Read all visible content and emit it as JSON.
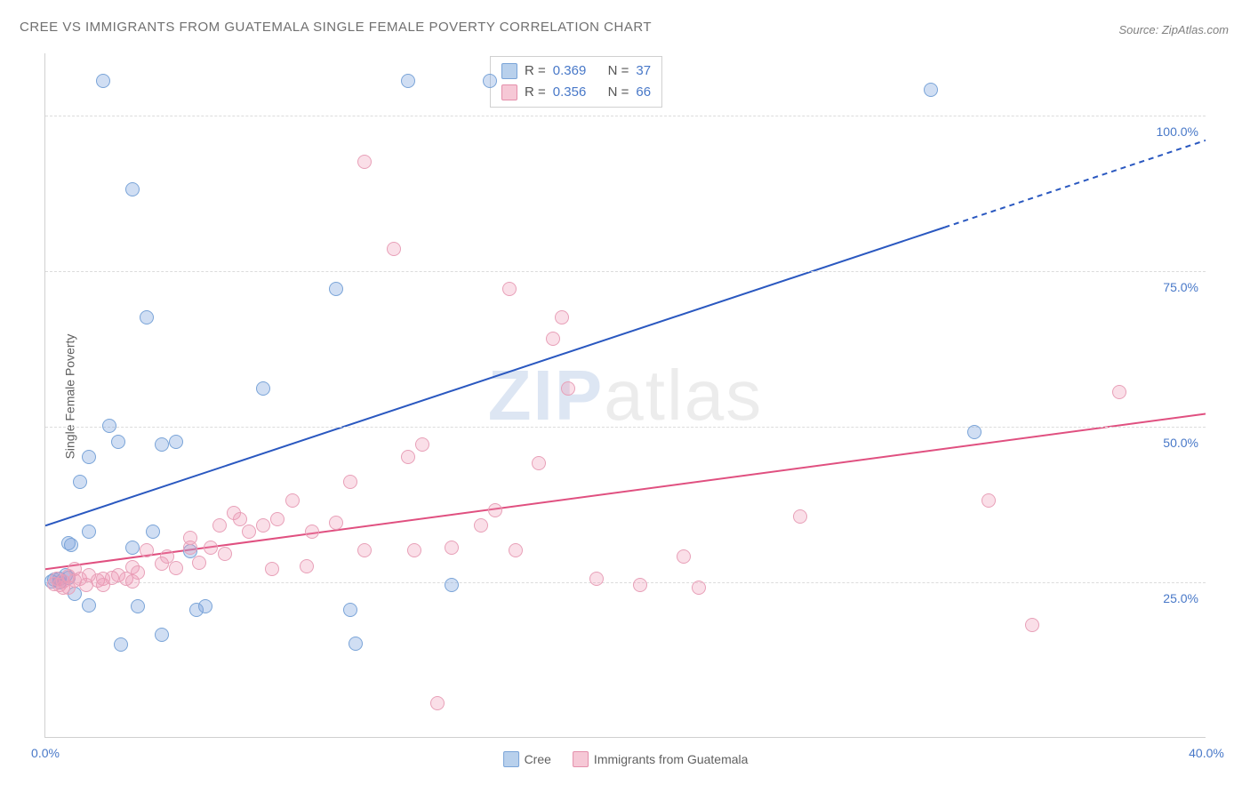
{
  "title": "CREE VS IMMIGRANTS FROM GUATEMALA SINGLE FEMALE POVERTY CORRELATION CHART",
  "source_label": "Source: ZipAtlas.com",
  "ylabel": "Single Female Poverty",
  "watermark_a": "ZIP",
  "watermark_b": "atlas",
  "chart": {
    "type": "scatter",
    "xlim": [
      0,
      40
    ],
    "ylim": [
      0,
      110
    ],
    "x_ticks": [
      {
        "v": 0,
        "label": "0.0%"
      },
      {
        "v": 40,
        "label": "40.0%"
      }
    ],
    "y_ticks": [
      {
        "v": 25,
        "label": "25.0%"
      },
      {
        "v": 50,
        "label": "50.0%"
      },
      {
        "v": 75,
        "label": "75.0%"
      },
      {
        "v": 100,
        "label": "100.0%"
      }
    ],
    "grid_color": "#dcdcdc",
    "background_color": "#ffffff",
    "marker_radius": 8,
    "series": [
      {
        "name": "Cree",
        "fill": "rgba(120,160,220,0.35)",
        "stroke": "#7aa4d8",
        "swatch_fill": "#b8d0ec",
        "swatch_stroke": "#7aa4d8",
        "r": "0.369",
        "n": "37",
        "trend": {
          "x1": 0,
          "y1": 34,
          "x2": 31,
          "y2": 82,
          "end_x": 40,
          "end_y": 96,
          "color": "#2a58c0",
          "width": 2
        },
        "points": [
          [
            0.2,
            25.0
          ],
          [
            0.3,
            25.3
          ],
          [
            0.5,
            25.5
          ],
          [
            0.5,
            24.8
          ],
          [
            0.7,
            26.0
          ],
          [
            0.8,
            25.6
          ],
          [
            0.8,
            31.2
          ],
          [
            0.9,
            30.8
          ],
          [
            1.0,
            23.0
          ],
          [
            1.2,
            41.0
          ],
          [
            1.5,
            45.0
          ],
          [
            1.5,
            33.0
          ],
          [
            1.5,
            21.1
          ],
          [
            2.0,
            105.5
          ],
          [
            2.2,
            50.0
          ],
          [
            2.5,
            47.5
          ],
          [
            2.6,
            14.8
          ],
          [
            3.0,
            88.0
          ],
          [
            3.0,
            30.5
          ],
          [
            3.2,
            21.0
          ],
          [
            3.5,
            67.5
          ],
          [
            3.7,
            33.0
          ],
          [
            4.0,
            47.0
          ],
          [
            4.0,
            16.5
          ],
          [
            4.5,
            47.5
          ],
          [
            5.0,
            29.8
          ],
          [
            5.2,
            20.5
          ],
          [
            5.5,
            21.0
          ],
          [
            7.5,
            56.0
          ],
          [
            10.0,
            72.0
          ],
          [
            10.5,
            20.5
          ],
          [
            10.7,
            15.0
          ],
          [
            12.5,
            105.5
          ],
          [
            14.0,
            24.5
          ],
          [
            15.3,
            105.5
          ],
          [
            30.5,
            104.0
          ],
          [
            32.0,
            49.0
          ]
        ]
      },
      {
        "name": "Immigrants from Guatemala",
        "fill": "rgba(240,150,180,0.30)",
        "stroke": "#e8a0b8",
        "swatch_fill": "#f6c8d6",
        "swatch_stroke": "#e48fab",
        "r": "0.356",
        "n": "66",
        "trend": {
          "x1": 0,
          "y1": 27,
          "x2": 40,
          "y2": 52,
          "end_x": 40,
          "end_y": 52,
          "color": "#e05080",
          "width": 2
        },
        "points": [
          [
            0.3,
            24.6
          ],
          [
            0.4,
            25.5
          ],
          [
            0.5,
            24.5
          ],
          [
            0.6,
            24.0
          ],
          [
            0.6,
            25.0
          ],
          [
            0.8,
            24.0
          ],
          [
            0.8,
            25.8
          ],
          [
            1.0,
            25.2
          ],
          [
            1.0,
            27.0
          ],
          [
            1.2,
            25.5
          ],
          [
            1.4,
            24.5
          ],
          [
            1.5,
            26.0
          ],
          [
            1.8,
            25.2
          ],
          [
            2.0,
            25.4
          ],
          [
            2.0,
            24.4
          ],
          [
            2.3,
            25.6
          ],
          [
            2.5,
            26.0
          ],
          [
            2.8,
            25.5
          ],
          [
            3.0,
            27.3
          ],
          [
            3.0,
            25.0
          ],
          [
            3.2,
            26.5
          ],
          [
            3.5,
            30.0
          ],
          [
            4.0,
            27.8
          ],
          [
            4.2,
            29.0
          ],
          [
            4.5,
            27.2
          ],
          [
            5.0,
            30.5
          ],
          [
            5.0,
            32.0
          ],
          [
            5.3,
            28.0
          ],
          [
            5.7,
            30.5
          ],
          [
            6.0,
            34.0
          ],
          [
            6.2,
            29.5
          ],
          [
            6.5,
            36.0
          ],
          [
            6.7,
            35.0
          ],
          [
            7.0,
            33.0
          ],
          [
            7.5,
            34.0
          ],
          [
            7.8,
            27.0
          ],
          [
            8.0,
            35.0
          ],
          [
            8.5,
            38.0
          ],
          [
            9.0,
            27.5
          ],
          [
            9.2,
            33.0
          ],
          [
            10.0,
            34.5
          ],
          [
            10.5,
            41.0
          ],
          [
            11.0,
            92.5
          ],
          [
            11.0,
            30.0
          ],
          [
            12.0,
            78.5
          ],
          [
            12.5,
            45.0
          ],
          [
            12.7,
            30.0
          ],
          [
            13.0,
            47.0
          ],
          [
            13.5,
            5.5
          ],
          [
            14.0,
            30.5
          ],
          [
            15.0,
            34.0
          ],
          [
            15.5,
            36.5
          ],
          [
            16.0,
            72.0
          ],
          [
            16.2,
            30.0
          ],
          [
            17.0,
            44.0
          ],
          [
            17.5,
            64.0
          ],
          [
            17.8,
            67.5
          ],
          [
            18.0,
            56.0
          ],
          [
            19.0,
            25.5
          ],
          [
            20.5,
            24.5
          ],
          [
            22.0,
            29.0
          ],
          [
            22.5,
            24.0
          ],
          [
            26.0,
            35.5
          ],
          [
            32.5,
            38.0
          ],
          [
            34.0,
            18.0
          ],
          [
            37.0,
            55.5
          ]
        ]
      }
    ]
  },
  "legend": {
    "cree": "Cree",
    "guatemala": "Immigrants from Guatemala",
    "r_label": "R =",
    "n_label": "N ="
  }
}
